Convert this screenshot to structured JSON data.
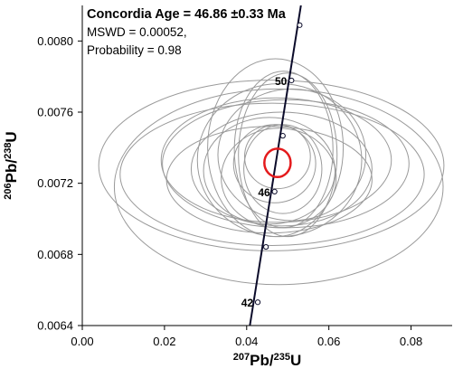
{
  "chart_data": {
    "type": "scatter",
    "subtype": "concordia-diagram",
    "title": "",
    "xlabel": {
      "base": "Pb/",
      "sup1": "207",
      "sup2": "235",
      "tail": "U"
    },
    "ylabel": {
      "base": "Pb/",
      "sup1": "206",
      "sup2": "238",
      "tail": "U"
    },
    "xlim": [
      0.0,
      0.09
    ],
    "ylim": [
      0.0064,
      0.0082
    ],
    "x_ticks": [
      {
        "value": 0.0,
        "label": "0.00"
      },
      {
        "value": 0.02,
        "label": "0.02"
      },
      {
        "value": 0.04,
        "label": "0.04"
      },
      {
        "value": 0.06,
        "label": "0.06"
      },
      {
        "value": 0.08,
        "label": "0.08"
      }
    ],
    "y_ticks": [
      {
        "value": 0.0064,
        "label": "0.0064"
      },
      {
        "value": 0.0068,
        "label": "0.0068"
      },
      {
        "value": 0.0072,
        "label": "0.0072"
      },
      {
        "value": 0.0076,
        "label": "0.0076"
      },
      {
        "value": 0.008,
        "label": "0.0080"
      }
    ],
    "grid": false,
    "annotation": {
      "line1": "Concordia Age = 46.86 ±0.33 Ma",
      "line2": "MSWD = 0.00052,",
      "line3": "Probability = 0.98"
    },
    "concordia_curve": {
      "points": [
        {
          "x": 0.0394,
          "y": 0.0062
        },
        {
          "x": 0.0532,
          "y": 0.0082
        }
      ],
      "color": "#0b0b2a"
    },
    "age_markers": [
      {
        "age": 42,
        "label": "42",
        "x": 0.0427,
        "y": 0.006531
      },
      {
        "age": 44,
        "label": "",
        "x": 0.0447,
        "y": 0.006842
      },
      {
        "age": 46,
        "label": "46",
        "x": 0.0468,
        "y": 0.007153
      },
      {
        "age": 48,
        "label": "",
        "x": 0.0488,
        "y": 0.007467
      },
      {
        "age": 50,
        "label": "50",
        "x": 0.0509,
        "y": 0.007778
      },
      {
        "age": 52,
        "label": "",
        "x": 0.0529,
        "y": 0.008089
      }
    ],
    "concordia_ellipse": {
      "cx": 0.0475,
      "cy": 0.007315,
      "rx": 0.0032,
      "ry": 8e-05,
      "color": "#e41a1c"
    },
    "error_ellipses": [
      {
        "cx": 0.046,
        "cy": 0.0073,
        "rx": 0.042,
        "ry": 0.00048
      },
      {
        "cx": 0.0478,
        "cy": 0.00718,
        "rx": 0.04,
        "ry": 0.00055
      },
      {
        "cx": 0.0462,
        "cy": 0.00725,
        "rx": 0.037,
        "ry": 0.0004
      },
      {
        "cx": 0.0495,
        "cy": 0.00731,
        "rx": 0.03,
        "ry": 0.00036
      },
      {
        "cx": 0.0455,
        "cy": 0.00722,
        "rx": 0.025,
        "ry": 0.0003
      },
      {
        "cx": 0.048,
        "cy": 0.00733,
        "rx": 0.02,
        "ry": 0.00043
      },
      {
        "cx": 0.047,
        "cy": 0.0074,
        "rx": 0.0165,
        "ry": 0.0005
      },
      {
        "cx": 0.049,
        "cy": 0.00739,
        "rx": 0.012,
        "ry": 0.00044
      },
      {
        "cx": 0.05,
        "cy": 0.00736,
        "rx": 0.012,
        "ry": 0.00046
      },
      {
        "cx": 0.0478,
        "cy": 0.00723,
        "rx": 0.014,
        "ry": 0.00028
      },
      {
        "cx": 0.0485,
        "cy": 0.00728,
        "rx": 0.022,
        "ry": 0.00032
      },
      {
        "cx": 0.0468,
        "cy": 0.00731,
        "rx": 0.01,
        "ry": 0.00022
      },
      {
        "cx": 0.0475,
        "cy": 0.00735,
        "rx": 0.008,
        "ry": 0.00018
      },
      {
        "cx": 0.051,
        "cy": 0.00736,
        "rx": 0.018,
        "ry": 0.00037
      },
      {
        "cx": 0.0455,
        "cy": 0.00727,
        "rx": 0.016,
        "ry": 0.0003
      },
      {
        "cx": 0.0472,
        "cy": 0.00733,
        "rx": 0.028,
        "ry": 0.00035
      },
      {
        "cx": 0.0488,
        "cy": 0.00728,
        "rx": 0.0095,
        "ry": 0.00025
      }
    ],
    "ellipse_color": "#9a9a9a",
    "axis_color": "#000000"
  }
}
